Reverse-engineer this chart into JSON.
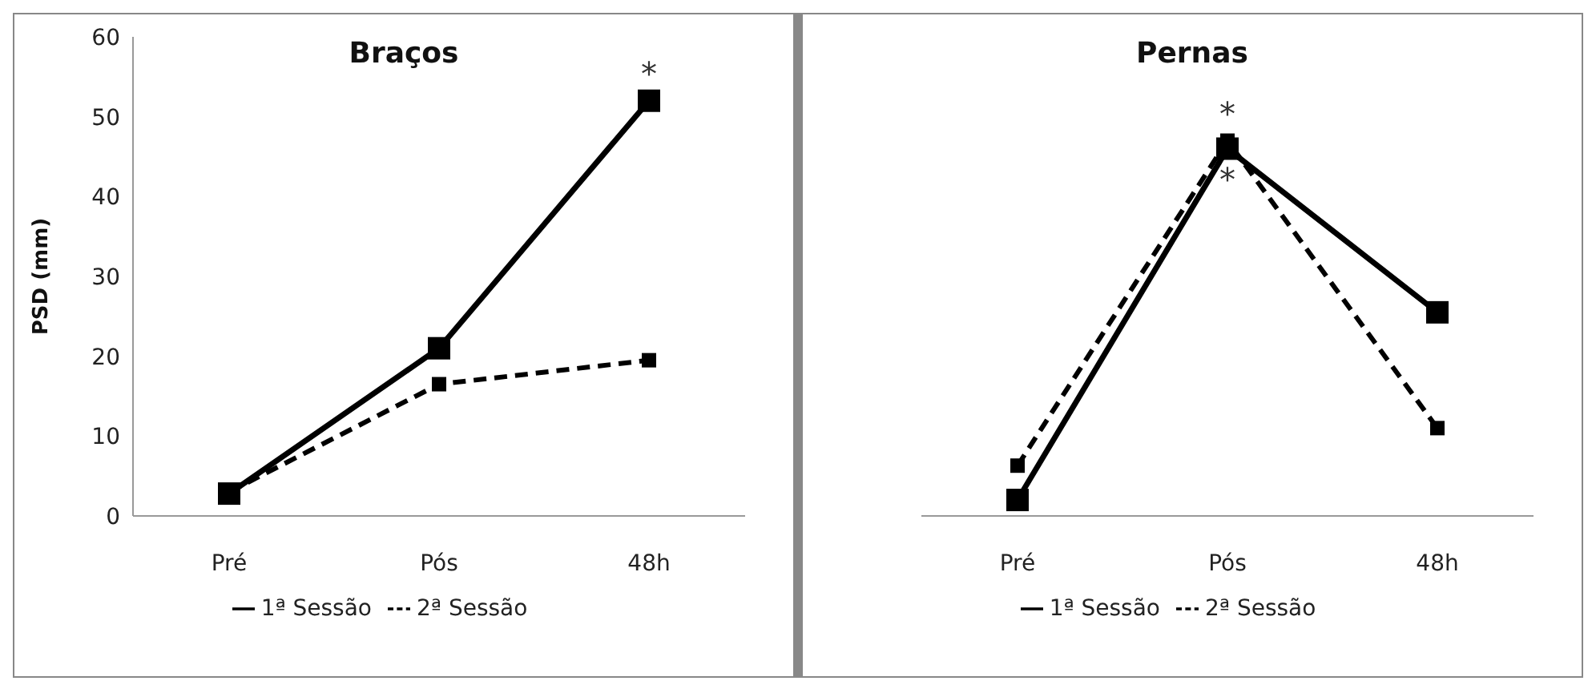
{
  "chart_data": [
    {
      "type": "line",
      "title": "Braços",
      "ylabel": "PSD (mm)",
      "categories": [
        "Pré",
        "Pós",
        "48h"
      ],
      "ylim": [
        0,
        60
      ],
      "yticks": [
        0,
        10,
        20,
        30,
        40,
        50,
        60
      ],
      "grid": false,
      "legend": "bottom",
      "marker": "square",
      "series": [
        {
          "name": "1ª Sessão",
          "color": "#000000",
          "line_style": "solid",
          "values": [
            2.8,
            21,
            52
          ]
        },
        {
          "name": "2ª Sessão",
          "color": "#000000",
          "line_style": "dashed",
          "values": [
            3,
            16.5,
            19.5
          ]
        }
      ],
      "annotations": [
        {
          "text": "*",
          "x": "48h",
          "y": 52
        }
      ]
    },
    {
      "type": "line",
      "title": "Pernas",
      "categories": [
        "Pré",
        "Pós",
        "48h"
      ],
      "ylim": [
        0,
        60
      ],
      "yticks": [
        0,
        10,
        20,
        30,
        40,
        50,
        60
      ],
      "tick_labels": "x",
      "grid": false,
      "legend": "bottom",
      "marker": "square",
      "series": [
        {
          "name": "1ª Sessão",
          "color": "#000000",
          "line_style": "solid",
          "values": [
            2,
            46,
            25.5
          ]
        },
        {
          "name": "2ª Sessão",
          "color": "#000000",
          "line_style": "dashed",
          "values": [
            6.3,
            47,
            11
          ]
        }
      ],
      "annotations": [
        {
          "text": "*",
          "x": "Pós",
          "y": 47
        },
        {
          "text": "*",
          "x": "Pós",
          "y": 46
        }
      ]
    }
  ]
}
